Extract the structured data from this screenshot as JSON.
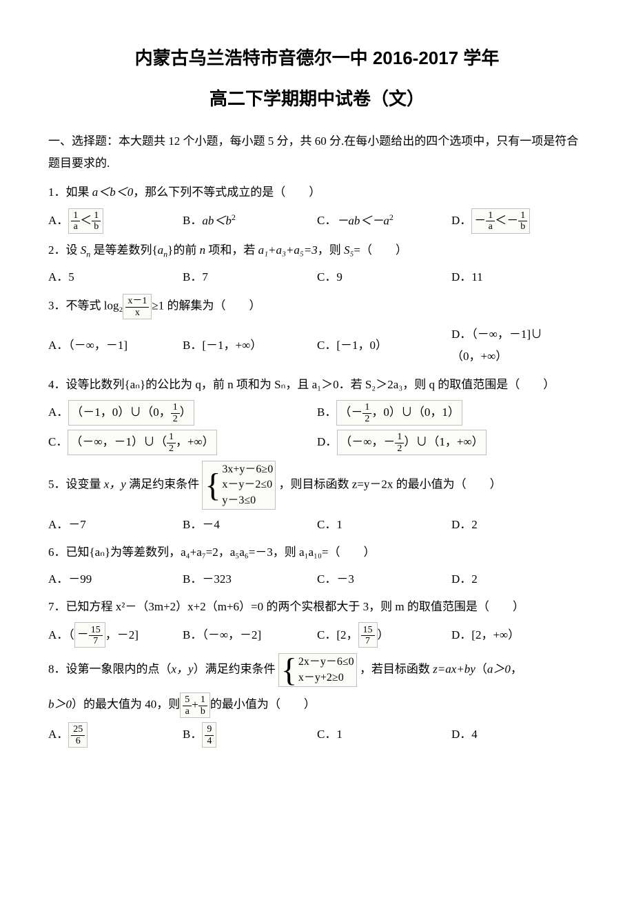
{
  "title_line1": "内蒙古乌兰浩特市音德尔一中 2016-2017 学年",
  "title_line2": "高二下学期期中试卷（文）",
  "instruction": "一、选择题：本大题共 12 个小题，每小题 5 分，共 60 分.在每小题给出的四个选项中，只有一项是符合题目要求的.",
  "q1": {
    "stem_pre": "1．如果 ",
    "stem_mid": "a＜b＜0",
    "stem_post": "，那么下列不等式成立的是（　　）",
    "A_pre": "A．",
    "B_pre": "B．",
    "B_math": "ab＜b",
    "C_pre": "C．",
    "C_math": "－ab＜－a",
    "D_pre": "D．"
  },
  "q2": {
    "stem_pre": "2．设 ",
    "stem_sn": "S",
    "stem_mid1": " 是等差数列{",
    "stem_an": "a",
    "stem_mid2": "}的前 ",
    "stem_n": "n",
    "stem_mid3": " 项和，若 ",
    "stem_eq": "a₁+a₃+a₅=3",
    "stem_mid4": "，则 ",
    "stem_s5": "S₅",
    "stem_post": "=（　　）",
    "A": "A．5",
    "B": "B．7",
    "C": "C．9",
    "D": "D．11"
  },
  "q3": {
    "stem_pre": "3．不等式 log₂",
    "stem_post": "≥1 的解集为（　　）",
    "A": "A．（－∞，－1]",
    "B": "B．[－1，+∞）",
    "C": "C．[－1，0）",
    "D": "D．（－∞，－1]∪（0，+∞）"
  },
  "q4": {
    "stem": "4．设等比数列{aₙ}的公比为 q，前 n 项和为 Sₙ，且 a₁＞0．若 S₂＞2a₃，则 q 的取值范围是（　　）",
    "A_pre": "A．",
    "A_math": "（－1，0）∪（0，",
    "A_post": "）",
    "B_pre": "B．",
    "B_math1": "（－",
    "B_math2": "，0）∪（0，1）",
    "C_pre": "C．",
    "C_math": "（－∞，－1）∪（",
    "C_post": "，+∞）",
    "D_pre": "D．",
    "D_math1": "（－∞，－",
    "D_math2": "）∪（1，+∞）"
  },
  "q5": {
    "stem_pre": "5．设变量 ",
    "stem_xy": "x，y",
    "stem_mid": " 满足约束条件",
    "c1": "3x+y－6≥0",
    "c2": "x－y－2≤0",
    "c3": "y－3≤0",
    "stem_post": "，则目标函数 z=y－2x 的最小值为（　　）",
    "A": "A．－7",
    "B": "B．－4",
    "C": "C．1",
    "D": "D．2"
  },
  "q6": {
    "stem": "6．已知{aₙ}为等差数列，a₄+a₇=2，a₅a₆=－3，则 a₁a₁₀=（　　）",
    "A": "A．－99",
    "B": "B．－323",
    "C": "C．－3",
    "D": "D．2"
  },
  "q7": {
    "stem": "7．已知方程 x²－（3m+2）x+2（m+6）=0 的两个实根都大于 3，则 m 的取值范围是（　　）",
    "A_pre": "A．（",
    "A_post": "，－2]",
    "B": "B．（－∞，－2]",
    "C_pre": "C．[2，",
    "C_post": "）",
    "D": "D．[2，+∞）"
  },
  "q8": {
    "stem_pre": "8．设第一象限内的点（",
    "stem_xy": "x，y",
    "stem_mid1": "）满足约束条件",
    "c1": "2x－y－6≤0",
    "c2": "x－y+2≥0",
    "stem_mid2": "，若目标函数 ",
    "stem_z": "z=ax+by",
    "stem_mid3": "（",
    "stem_a": "a＞0",
    "stem_post1": "，",
    "line2_pre": "b＞0",
    "line2_mid1": "）的最大值为 40，则",
    "line2_mid2": "的最小值为（　　）",
    "A_pre": "A．",
    "B_pre": "B．",
    "C": "C．1",
    "D": "D．4"
  },
  "frac": {
    "one": "1",
    "a": "a",
    "b": "b",
    "two": "2",
    "x_minus_1": "x－1",
    "x": "x",
    "five": "5",
    "nine": "9",
    "four": "4",
    "twenty_five": "25",
    "six": "6",
    "fifteen": "15",
    "seven": "7",
    "neg_fifteen": "－15"
  }
}
